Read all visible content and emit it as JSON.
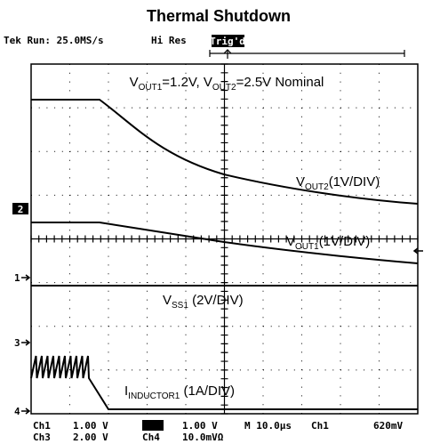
{
  "header": {
    "title": "Thermal Shutdown",
    "status": "Tek Run: 25.0MS/s",
    "mode": "Hi Res",
    "trigger": "Trig'd"
  },
  "annotations": {
    "nominal": [
      "V",
      "OUT1",
      "=1.2V, V",
      "OUT2",
      "=2.5V Nominal"
    ],
    "vout2": [
      "V",
      "OUT2",
      "(1V/DIV)"
    ],
    "vout1": [
      "V",
      "OUT1",
      "(1V/DIV)"
    ],
    "vss1": [
      "V",
      "SS1",
      " (2V/DIV)"
    ],
    "inductor": [
      "I",
      "INDUCTOR1",
      " (1A/DIV)"
    ]
  },
  "markers": {
    "ch2": "2",
    "ch1": "1",
    "ch3": "3",
    "ch4": "4"
  },
  "footer": {
    "row1": [
      "Ch1",
      "1.00 V",
      "1.00 V",
      "M 10.0µs",
      "Ch1",
      "620mV"
    ],
    "row2": [
      "Ch3",
      "2.00 V",
      "Ch4",
      "10.0mVΩ"
    ]
  }
}
